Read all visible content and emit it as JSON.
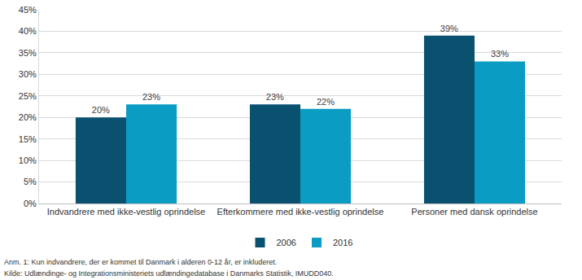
{
  "chart_data": {
    "type": "bar",
    "categories": [
      "Indvandrere med ikke-vestlig oprindelse",
      "Efterkommere med ikke-vestlig oprindelse",
      "Personer med dansk oprindelse"
    ],
    "series": [
      {
        "name": "2006",
        "color": "#0a5170",
        "values": [
          20,
          23,
          39
        ],
        "value_labels": [
          "20%",
          "23%",
          "39%"
        ]
      },
      {
        "name": "2016",
        "color": "#0b9cc4",
        "values": [
          23,
          22,
          33
        ],
        "value_labels": [
          "23%",
          "22%",
          "33%"
        ]
      }
    ],
    "ylim": [
      0,
      45
    ],
    "yticks": [
      {
        "value": 0,
        "label": "0%"
      },
      {
        "value": 5,
        "label": "5%"
      },
      {
        "value": 10,
        "label": "10%"
      },
      {
        "value": 15,
        "label": "15%"
      },
      {
        "value": 20,
        "label": "20%"
      },
      {
        "value": 25,
        "label": "25%"
      },
      {
        "value": 30,
        "label": "30%"
      },
      {
        "value": 35,
        "label": "35%"
      },
      {
        "value": 40,
        "label": "40%"
      },
      {
        "value": 45,
        "label": "45%"
      }
    ],
    "grid": true,
    "data_labels": true,
    "legend": "bottom",
    "annotations": [
      "Anm. 1: Kun indvandrere, der er kommet til Danmark i alderen 0-12 år, er inkluderet.",
      "Kilde: Udlændinge- og Integrationsministeriets udlændingedatabase i Danmarks Statistik, IMUDD040."
    ]
  }
}
